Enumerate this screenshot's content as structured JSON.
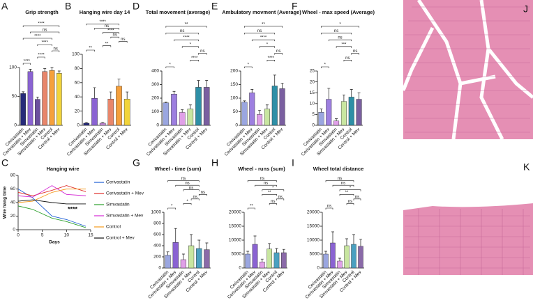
{
  "chart_data": [
    {
      "panel": "A",
      "type": "bar",
      "title": "Grip strength",
      "categories": [
        "Cerivastatin",
        "Cerivastatin + Mev",
        "Simvastatin",
        "Simvastatin + Mev",
        "Control",
        "Control + Mev"
      ],
      "values": [
        55,
        93,
        45,
        93,
        95,
        90
      ],
      "errors": [
        3,
        4,
        4,
        5,
        5,
        4
      ],
      "colors": [
        "#262a7a",
        "#8a63d2",
        "#6b4f9e",
        "#e8866b",
        "#f5a03c",
        "#f2d43a"
      ],
      "ylim": [
        0,
        100
      ],
      "yticks": [
        0,
        50,
        100
      ],
      "comparisons": [
        {
          "from": "Cerivastatin",
          "to": "Cerivastatin + Mev",
          "label": "****"
        },
        {
          "from": "Simvastatin",
          "to": "Simvastatin + Mev",
          "label": "****"
        },
        {
          "from": "Control",
          "to": "Control + Mev",
          "label": "ns"
        },
        {
          "from": "Simvastatin",
          "to": "Control",
          "label": "****"
        },
        {
          "from": "Cerivastatin",
          "to": "Control",
          "label": "****"
        },
        {
          "from": "Cerivastatin + Mev",
          "to": "Control + Mev",
          "label": "ns"
        },
        {
          "from": "Cerivastatin",
          "to": "Control + Mev",
          "label": "****"
        }
      ]
    },
    {
      "panel": "B",
      "type": "bar",
      "title": "Hanging wire day 14",
      "categories": [
        "Cerivastatin",
        "Cerivastatin + Mev",
        "Simvastatin",
        "Simvastatin + Mev",
        "Control",
        "Control + Mev"
      ],
      "values": [
        3,
        38,
        3,
        37,
        55,
        37
      ],
      "errors": [
        1,
        15,
        1,
        10,
        10,
        10
      ],
      "colors": [
        "#262a7a",
        "#8a63d2",
        "#c48ad8",
        "#e8866b",
        "#f5a03c",
        "#f2d43a"
      ],
      "ylim": [
        0,
        100
      ],
      "yticks": [
        0,
        20,
        40,
        60,
        80,
        100
      ],
      "comparisons": [
        {
          "from": "Cerivastatin",
          "to": "Cerivastatin + Mev",
          "label": "**"
        },
        {
          "from": "Simvastatin",
          "to": "Simvastatin + Mev",
          "label": "**"
        },
        {
          "from": "Control",
          "to": "Control + Mev",
          "label": "ns"
        },
        {
          "from": "Simvastatin + Mev",
          "to": "Control",
          "label": "ns"
        },
        {
          "from": "Simvastatin",
          "to": "Control",
          "label": "****"
        },
        {
          "from": "Cerivastatin + Mev",
          "to": "Control",
          "label": "ns"
        },
        {
          "from": "Cerivastatin",
          "to": "Control",
          "label": "****"
        }
      ]
    },
    {
      "panel": "C",
      "type": "line",
      "title": "Hanging wire",
      "x_label": "Days",
      "y_label": "Wire hang time",
      "annotation": "****",
      "x": [
        0,
        3,
        7,
        10,
        14
      ],
      "xlim": [
        0,
        15
      ],
      "xticks": [
        0,
        5,
        10,
        15
      ],
      "ylim": [
        0,
        80
      ],
      "yticks": [
        0,
        20,
        40,
        60,
        80
      ],
      "series": [
        {
          "name": "Cerivastatin",
          "color": "#1f5fd6",
          "values": [
            60,
            47,
            20,
            15,
            5
          ]
        },
        {
          "name": "Cerivastatin + Mev",
          "color": "#e0302a",
          "values": [
            55,
            50,
            58,
            65,
            56
          ]
        },
        {
          "name": "Simvastatin",
          "color": "#2ca02c",
          "values": [
            35,
            30,
            17,
            12,
            3
          ]
        },
        {
          "name": "Simvastatin + Mev",
          "color": "#d42ad4",
          "values": [
            50,
            48,
            65,
            52,
            50
          ]
        },
        {
          "name": "Control",
          "color": "#f59a1c",
          "values": [
            40,
            42,
            55,
            60,
            60
          ]
        },
        {
          "name": "Control + Mev",
          "color": "#111111",
          "values": [
            42,
            44,
            40,
            38,
            38
          ]
        }
      ]
    },
    {
      "panel": "D",
      "type": "bar",
      "title": "Total movement (average)",
      "categories": [
        "Cerivastatin",
        "Cerivastatin + Mev",
        "Simvastatin",
        "Simvastatin + Mev",
        "Control",
        "Control + Mev"
      ],
      "values": [
        165,
        230,
        95,
        120,
        280,
        280
      ],
      "errors": [
        5,
        20,
        20,
        30,
        50,
        50
      ],
      "colors": [
        "#9aa6e0",
        "#9d7fe0",
        "#e0a0e8",
        "#c8e6a0",
        "#2e8fa6",
        "#7a5fa0"
      ],
      "ylim": [
        0,
        400
      ],
      "yticks": [
        0,
        100,
        200,
        300,
        400
      ],
      "comparisons": [
        {
          "from": "Cerivastatin",
          "to": "Cerivastatin + Mev",
          "label": "*"
        },
        {
          "from": "Simvastatin + Mev",
          "to": "Control",
          "label": "****"
        },
        {
          "from": "Control",
          "to": "Control + Mev",
          "label": "ns"
        },
        {
          "from": "Simvastatin",
          "to": "Control",
          "label": "*"
        },
        {
          "from": "Cerivastatin + Mev",
          "to": "Control",
          "label": "****"
        },
        {
          "from": "Cerivastatin",
          "to": "Control",
          "label": "ns"
        },
        {
          "from": "Cerivastatin",
          "to": "Control + Mev",
          "label": "**"
        }
      ]
    },
    {
      "panel": "E",
      "type": "bar",
      "title": "Ambulatory movment (Average)",
      "categories": [
        "Cerivastatin",
        "Cerivastatin + Mev",
        "Simvastatin",
        "Simvastatin + Mev",
        "Control",
        "Control + Mev"
      ],
      "values": [
        85,
        120,
        40,
        60,
        145,
        135
      ],
      "errors": [
        5,
        12,
        15,
        15,
        40,
        20
      ],
      "colors": [
        "#9aa6e0",
        "#9d7fe0",
        "#e0a0e8",
        "#c8e6a0",
        "#2e8fa6",
        "#7a5fa0"
      ],
      "ylim": [
        0,
        200
      ],
      "yticks": [
        0,
        50,
        100,
        150,
        200
      ],
      "comparisons": [
        {
          "from": "Cerivastatin",
          "to": "Cerivastatin + Mev",
          "label": "*"
        },
        {
          "from": "Simvastatin + Mev",
          "to": "Control",
          "label": "****"
        },
        {
          "from": "Control",
          "to": "Control + Mev",
          "label": "ns"
        },
        {
          "from": "Simvastatin",
          "to": "Control",
          "label": "*"
        },
        {
          "from": "Cerivastatin + Mev",
          "to": "Control",
          "label": "****"
        },
        {
          "from": "Cerivastatin",
          "to": "Control",
          "label": "ns"
        },
        {
          "from": "Cerivastatin",
          "to": "Control + Mev",
          "label": "**"
        }
      ]
    },
    {
      "panel": "F",
      "type": "bar",
      "title": "Wheel - max speed (Average)",
      "categories": [
        "Cerivastatin",
        "Cerivastatin + Mev",
        "Simvastatin",
        "Simvastatin + Mev",
        "Control",
        "Control + Mev"
      ],
      "values": [
        6,
        12,
        2,
        11,
        13,
        12
      ],
      "errors": [
        1.5,
        5,
        1,
        3,
        3.5,
        3
      ],
      "colors": [
        "#9aa6e0",
        "#9d7fe0",
        "#e0a0e8",
        "#c8e6a0",
        "#2e8fa6",
        "#7a5fa0"
      ],
      "ylim": [
        0,
        25
      ],
      "yticks": [
        0,
        5,
        10,
        15,
        20,
        25
      ],
      "comparisons": [
        {
          "from": "Cerivastatin",
          "to": "Cerivastatin + Mev",
          "label": "*"
        },
        {
          "from": "Simvastatin + Mev",
          "to": "Control",
          "label": "ns"
        },
        {
          "from": "Control",
          "to": "Control + Mev",
          "label": "ns"
        },
        {
          "from": "Simvastatin",
          "to": "Control",
          "label": "***"
        },
        {
          "from": "Cerivastatin + Mev",
          "to": "Control",
          "label": "ns"
        },
        {
          "from": "Cerivastatin",
          "to": "Control",
          "label": "ns"
        },
        {
          "from": "Cerivastatin",
          "to": "Control + Mev",
          "label": "*"
        }
      ]
    },
    {
      "panel": "G",
      "type": "bar",
      "title": "Wheel - time (sum)",
      "categories": [
        "Cerivastatin",
        "Cerivastatin + Mev",
        "Simvastatin",
        "Simvastatin + Mev",
        "Control",
        "Control + Mev"
      ],
      "values": [
        230,
        460,
        150,
        400,
        350,
        330
      ],
      "errors": [
        60,
        250,
        100,
        200,
        150,
        120
      ],
      "colors": [
        "#9aa6e0",
        "#8a63d2",
        "#e0a0e8",
        "#c8e6a0",
        "#4aa0c0",
        "#8a6aa8"
      ],
      "ylim": [
        0,
        1000
      ],
      "yticks": [
        0,
        200,
        400,
        600,
        800,
        1000
      ],
      "comparisons": [
        {
          "from": "Cerivastatin",
          "to": "Cerivastatin + Mev",
          "label": "*"
        },
        {
          "from": "Simvastatin",
          "to": "Simvastatin + Mev",
          "label": "*"
        },
        {
          "from": "Simvastatin + Mev",
          "to": "Control",
          "label": "ns"
        },
        {
          "from": "Control",
          "to": "Control + Mev",
          "label": "ns"
        },
        {
          "from": "Simvastatin",
          "to": "Control",
          "label": "ns"
        },
        {
          "from": "Cerivastatin + Mev",
          "to": "Control",
          "label": "ns"
        },
        {
          "from": "Cerivastatin",
          "to": "Control",
          "label": "ns"
        }
      ]
    },
    {
      "panel": "H",
      "type": "bar",
      "title": "Wheel - runs (sum)",
      "categories": [
        "Cerivastatin",
        "Cerivastatin + Mev",
        "Simvastatin",
        "Simvastatin + Mev",
        "Control",
        "Control + Mev"
      ],
      "values": [
        5000,
        8500,
        2200,
        6800,
        5500,
        5500
      ],
      "errors": [
        1000,
        3000,
        1000,
        2000,
        1500,
        1200
      ],
      "colors": [
        "#9aa6e0",
        "#8a63d2",
        "#e0a0e8",
        "#c8e6a0",
        "#4aa0c0",
        "#8a6aa8"
      ],
      "ylim": [
        0,
        20000
      ],
      "yticks": [
        0,
        5000,
        10000,
        15000,
        20000
      ],
      "comparisons": [
        {
          "from": "Cerivastatin",
          "to": "Cerivastatin + Mev",
          "label": "**"
        },
        {
          "from": "Simvastatin + Mev",
          "to": "Control",
          "label": "ns"
        },
        {
          "from": "Control",
          "to": "Control + Mev",
          "label": "ns"
        },
        {
          "from": "Simvastatin",
          "to": "Control",
          "label": "**"
        },
        {
          "from": "Simvastatin",
          "to": "Control + Mev",
          "label": "*"
        },
        {
          "from": "Cerivastatin + Mev",
          "to": "Control",
          "label": "ns"
        },
        {
          "from": "Cerivastatin",
          "to": "Control",
          "label": "ns"
        }
      ]
    },
    {
      "panel": "I",
      "type": "bar",
      "title": "Wheel total distance",
      "categories": [
        "Cerivastatin",
        "Cerivastatin + Mev",
        "Simvastatin",
        "Simvastatin + Mev",
        "Control",
        "Control + Mev"
      ],
      "values": [
        5000,
        9000,
        2500,
        8000,
        8500,
        7800
      ],
      "errors": [
        1000,
        4000,
        1000,
        2500,
        3500,
        2500
      ],
      "colors": [
        "#9aa6e0",
        "#8a63d2",
        "#e0a0e8",
        "#c8e6a0",
        "#4aa0c0",
        "#8a6aa8"
      ],
      "ylim": [
        0,
        20000
      ],
      "yticks": [
        0,
        5000,
        10000,
        15000,
        20000
      ],
      "comparisons": [
        {
          "from": "Cerivastatin",
          "to": "Cerivastatin + Mev",
          "label": "ns"
        },
        {
          "from": "Simvastatin + Mev",
          "to": "Control",
          "label": "ns"
        },
        {
          "from": "Control",
          "to": "Control + Mev",
          "label": "ns"
        },
        {
          "from": "Simvastatin",
          "to": "Control",
          "label": "**"
        },
        {
          "from": "Simvastatin",
          "to": "Control + Mev",
          "label": "*"
        },
        {
          "from": "Cerivastatin + Mev",
          "to": "Control",
          "label": "ns"
        },
        {
          "from": "Cerivastatin",
          "to": "Control",
          "label": "ns"
        }
      ]
    }
  ],
  "images": [
    {
      "panel": "J"
    },
    {
      "panel": "K"
    }
  ]
}
